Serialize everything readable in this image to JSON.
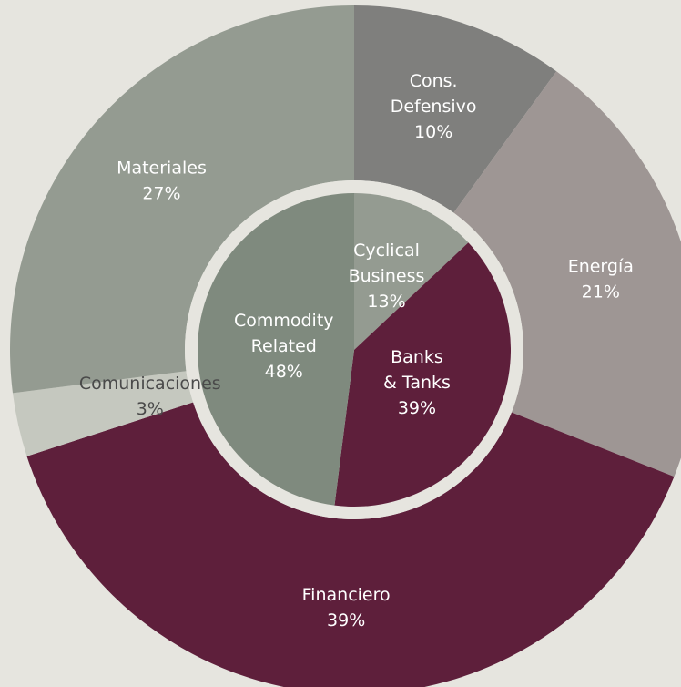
{
  "chart_data": {
    "type": "pie",
    "background": "#e6e5df",
    "rings": {
      "outer": {
        "slices": [
          {
            "label_lines": [
              "Cons.",
              "Defensivo"
            ],
            "value_label": "10%",
            "value": 10,
            "color": "#7f7f7d"
          },
          {
            "label_lines": [
              "Energía"
            ],
            "value_label": "21%",
            "value": 21,
            "color": "#9e9694"
          },
          {
            "label_lines": [
              "Financiero"
            ],
            "value_label": "39%",
            "value": 39,
            "color": "#5e1f3b"
          },
          {
            "label_lines": [
              "Comunicaciones"
            ],
            "value_label": "3%",
            "value": 3,
            "color": "#c5c8bf",
            "text_color": "#4a4a4a"
          },
          {
            "label_lines": [
              "Materiales"
            ],
            "value_label": "27%",
            "value": 27,
            "color": "#949b91"
          }
        ]
      },
      "inner": {
        "slices": [
          {
            "label_lines": [
              "Cyclical",
              "Business"
            ],
            "value_label": "13%",
            "value": 13,
            "color": "#949b91"
          },
          {
            "label_lines": [
              "Banks",
              "& Tanks"
            ],
            "value_label": "39%",
            "value": 39,
            "color": "#5e1f3b"
          },
          {
            "label_lines": [
              "Commodity",
              "Related"
            ],
            "value_label": "48%",
            "value": 48,
            "color": "#7f8a7e"
          }
        ]
      }
    }
  }
}
